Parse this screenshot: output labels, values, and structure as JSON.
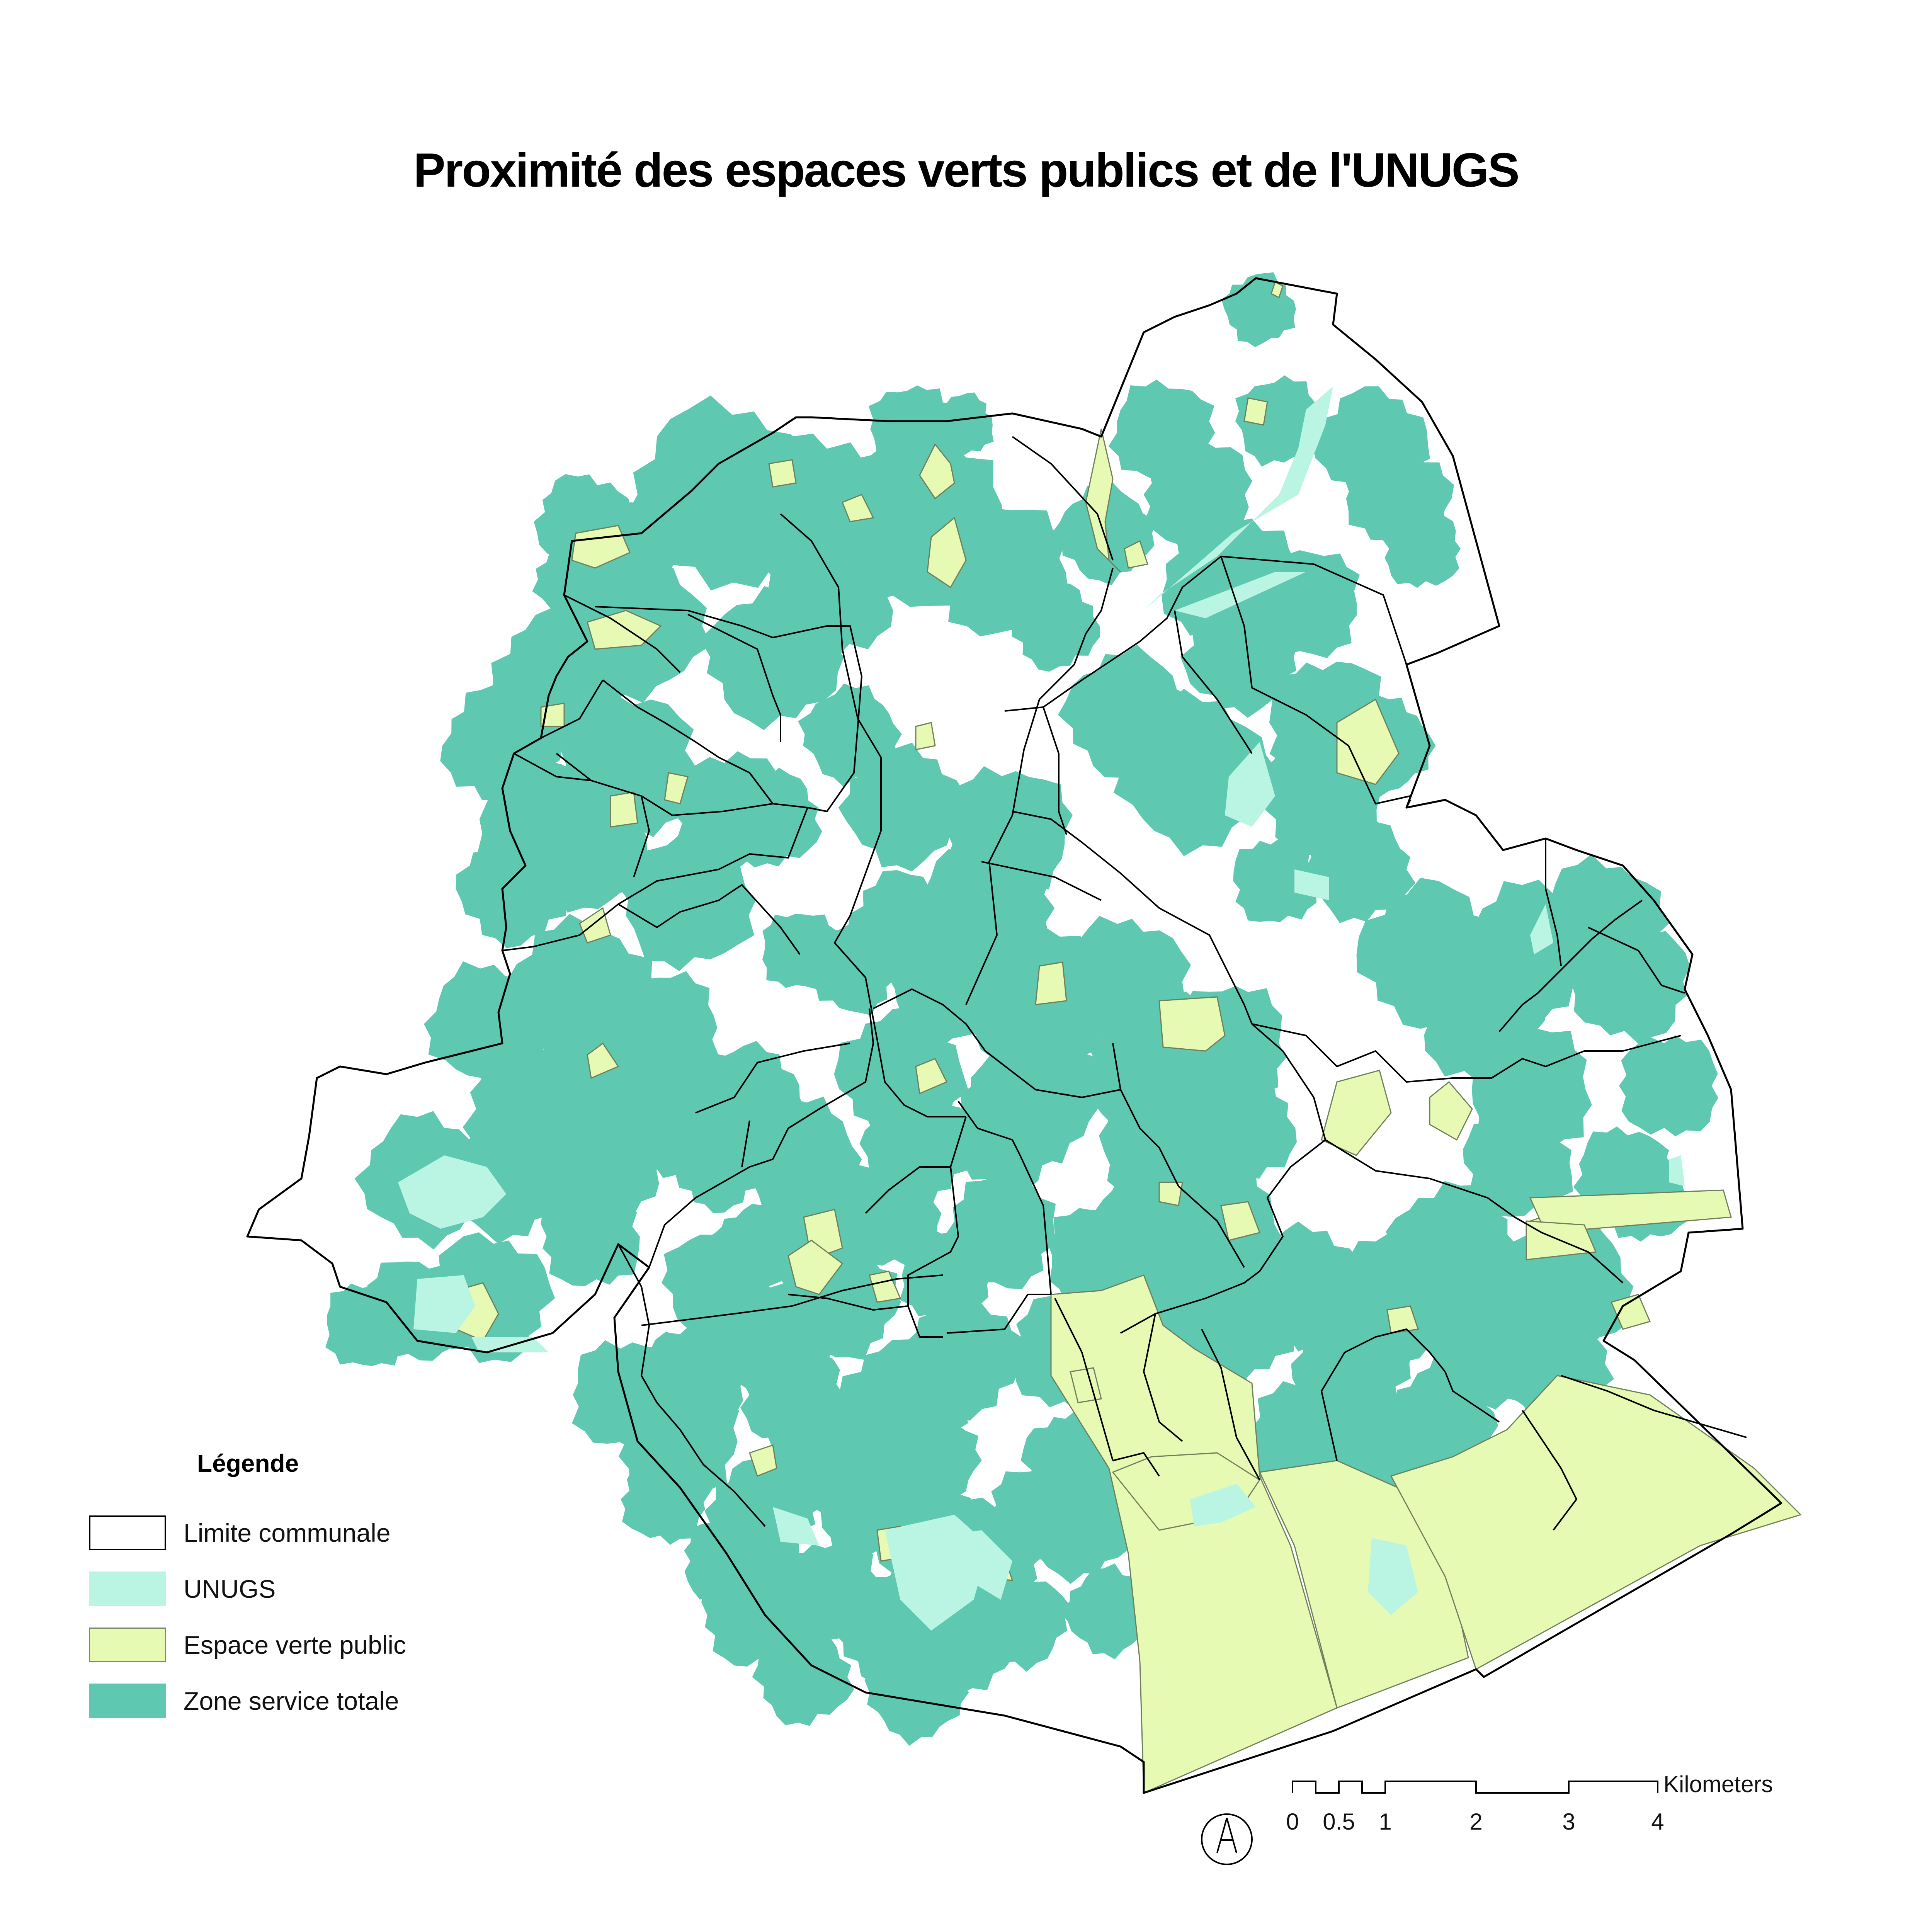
{
  "title": "Proximité des espaces verts publics et de l'UNUGS",
  "colors": {
    "zone_service": "#5ec8b0",
    "espace_vert": "#e6fab4",
    "unugs": "#b9f5e2",
    "limite": "#000000",
    "background": "#ffffff"
  },
  "legend": {
    "title": "Légende",
    "items": [
      {
        "label": "Limite communale",
        "style": "outline"
      },
      {
        "label": "UNUGS",
        "style": "unugs"
      },
      {
        "label": "Espace verte public",
        "style": "espace_vert"
      },
      {
        "label": "Zone service totale",
        "style": "zone_service"
      }
    ]
  },
  "scale_bar": {
    "unit": "Kilometers",
    "ticks": [
      "0",
      "0.5",
      "1",
      "2",
      "3",
      "4"
    ]
  },
  "north_arrow": {
    "icon": "north-arrow-icon"
  }
}
